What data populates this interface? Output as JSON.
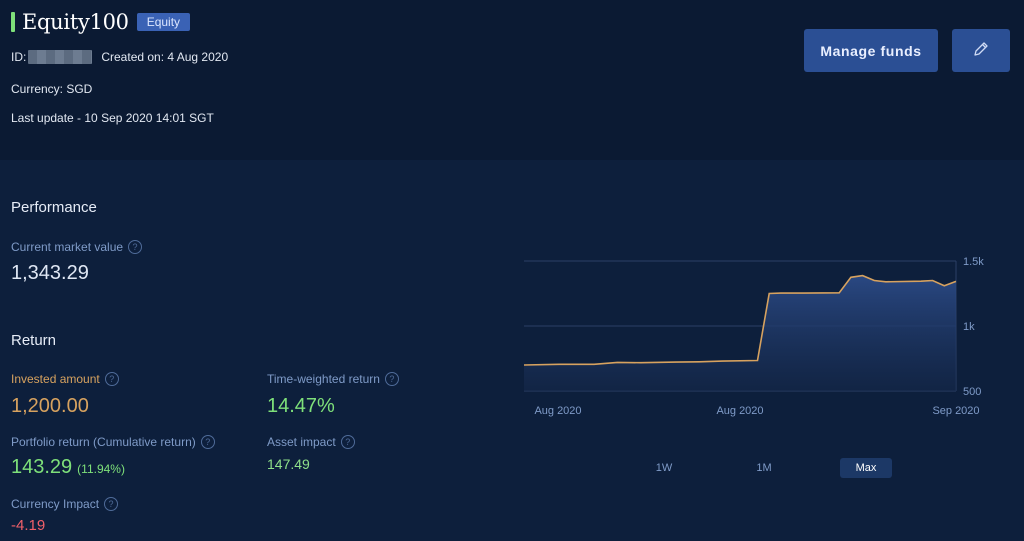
{
  "header": {
    "title": "Equity100",
    "badge": "Equity",
    "id_label": "ID:",
    "created": "Created on: 4 Aug 2020",
    "currency": "Currency: SGD",
    "last_update": "Last update - 10 Sep 2020 14:01 SGT",
    "manage_funds_label": "Manage funds",
    "edit_icon": "pencil-icon",
    "accent_color": "#7ee07a"
  },
  "performance": {
    "title": "Performance",
    "market_value_label": "Current market value",
    "market_value": "1,343.29"
  },
  "return": {
    "title": "Return",
    "invested_label": "Invested amount",
    "invested": "1,200.00",
    "twr_label": "Time-weighted return",
    "twr": "14.47%",
    "portfolio_label": "Portfolio return (Cumulative return)",
    "portfolio": "143.29",
    "portfolio_pct": "(11.94%)",
    "asset_label": "Asset impact",
    "asset": "147.49",
    "currency_label": "Currency Impact",
    "currency": "-4.19"
  },
  "chart_data": {
    "type": "area",
    "x": [
      "2020-08-04",
      "2020-08-07",
      "2020-08-10",
      "2020-08-12",
      "2020-08-14",
      "2020-08-17",
      "2020-08-19",
      "2020-08-21",
      "2020-08-24",
      "2020-08-25",
      "2020-08-26",
      "2020-08-28",
      "2020-08-31",
      "2020-09-01",
      "2020-09-02",
      "2020-09-03",
      "2020-09-04",
      "2020-09-07",
      "2020-09-08",
      "2020-09-09",
      "2020-09-10"
    ],
    "values": [
      700,
      705,
      705,
      720,
      718,
      722,
      725,
      730,
      735,
      1250,
      1253,
      1253,
      1255,
      1375,
      1388,
      1350,
      1340,
      1345,
      1350,
      1310,
      1343
    ],
    "x_ticks": [
      "Aug 2020",
      "Aug 2020",
      "Sep 2020"
    ],
    "y_ticks": [
      "1.5k",
      "1k",
      "500"
    ],
    "y_tick_values": [
      1500,
      1000,
      500
    ],
    "ylim": [
      500,
      1500
    ],
    "grid": true,
    "line_color": "#d7a25f"
  },
  "ranges": {
    "items": [
      "1W",
      "1M",
      "Max"
    ],
    "selected": "Max"
  }
}
